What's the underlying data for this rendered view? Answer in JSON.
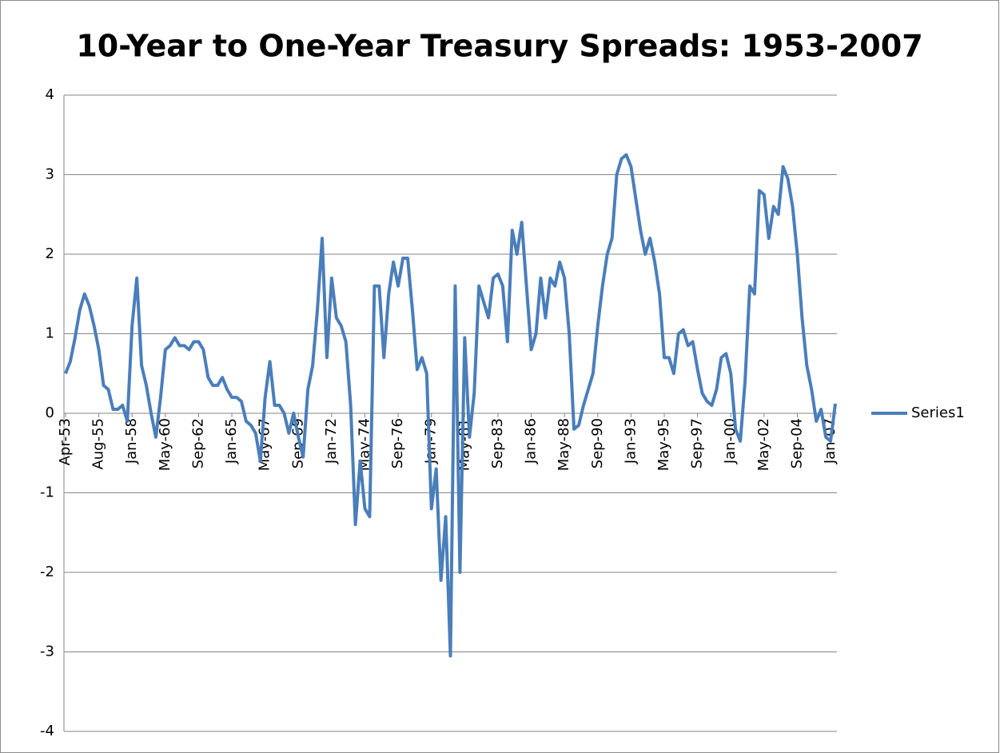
{
  "chart_data": {
    "type": "line",
    "title": "10-Year to One-Year Treasury Spreads: 1953-2007",
    "categories": [
      "Apr-53",
      null,
      null,
      null,
      null,
      null,
      null,
      "Aug-55",
      null,
      null,
      null,
      null,
      null,
      null,
      "Jan-58",
      null,
      null,
      null,
      null,
      null,
      null,
      "May-60",
      null,
      null,
      null,
      null,
      null,
      null,
      "Sep-62",
      null,
      null,
      null,
      null,
      null,
      null,
      "Jan-65",
      null,
      null,
      null,
      null,
      null,
      null,
      "May-67",
      null,
      null,
      null,
      null,
      null,
      null,
      "Sep-69",
      null,
      null,
      null,
      null,
      null,
      null,
      "Jan-72",
      null,
      null,
      null,
      null,
      null,
      null,
      "May-74",
      null,
      null,
      null,
      null,
      null,
      null,
      "Sep-76",
      null,
      null,
      null,
      null,
      null,
      null,
      "Jan-79",
      null,
      null,
      null,
      null,
      null,
      null,
      "May-81",
      null,
      null,
      null,
      null,
      null,
      null,
      "Sep-83",
      null,
      null,
      null,
      null,
      null,
      null,
      "Jan-86",
      null,
      null,
      null,
      null,
      null,
      null,
      "May-88",
      null,
      null,
      null,
      null,
      null,
      null,
      "Sep-90",
      null,
      null,
      null,
      null,
      null,
      null,
      "Jan-93",
      null,
      null,
      null,
      null,
      null,
      null,
      "May-95",
      null,
      null,
      null,
      null,
      null,
      null,
      "Sep-97",
      null,
      null,
      null,
      null,
      null,
      null,
      "Jan-00",
      null,
      null,
      null,
      null,
      null,
      null,
      "May-02",
      null,
      null,
      null,
      null,
      null,
      null,
      "Sep-04",
      null,
      null,
      null,
      null,
      null,
      null,
      "Jan-07",
      null
    ],
    "series": [
      {
        "name": "Series1",
        "color": "#4a7ebb",
        "values": [
          0.5,
          0.65,
          0.95,
          1.3,
          1.5,
          1.35,
          1.1,
          0.8,
          0.35,
          0.3,
          0.05,
          0.05,
          0.1,
          -0.1,
          1.1,
          1.7,
          0.6,
          0.35,
          0,
          -0.3,
          0.2,
          0.8,
          0.85,
          0.95,
          0.85,
          0.85,
          0.8,
          0.9,
          0.9,
          0.8,
          0.45,
          0.35,
          0.35,
          0.45,
          0.3,
          0.2,
          0.2,
          0.15,
          -0.1,
          -0.15,
          -0.25,
          -0.6,
          0.2,
          0.65,
          0.1,
          0.1,
          0,
          -0.25,
          0,
          -0.3,
          -0.55,
          0.3,
          0.6,
          1.3,
          2.2,
          0.7,
          1.7,
          1.2,
          1.1,
          0.9,
          0.1,
          -1.4,
          -0.6,
          -1.2,
          -1.3,
          1.6,
          1.6,
          0.7,
          1.5,
          1.9,
          1.6,
          1.95,
          1.95,
          1.3,
          0.55,
          0.7,
          0.5,
          -1.2,
          -0.7,
          -2.1,
          -1.3,
          -3.05,
          1.6,
          -2,
          0.95,
          -0.3,
          0.25,
          1.6,
          1.4,
          1.2,
          1.7,
          1.75,
          1.6,
          0.9,
          2.3,
          2,
          2.4,
          1.6,
          0.8,
          1,
          1.7,
          1.2,
          1.7,
          1.6,
          1.9,
          1.7,
          1,
          -0.2,
          -0.15,
          0.1,
          0.3,
          0.5,
          1.1,
          1.6,
          2,
          2.2,
          3,
          3.2,
          3.25,
          3.1,
          2.7,
          2.3,
          2,
          2.2,
          1.9,
          1.5,
          0.7,
          0.7,
          0.5,
          1,
          1.05,
          0.85,
          0.9,
          0.55,
          0.25,
          0.15,
          0.1,
          0.3,
          0.7,
          0.75,
          0.5,
          -0.2,
          -0.35,
          0.4,
          1.6,
          1.5,
          2.8,
          2.75,
          2.2,
          2.6,
          2.5,
          3.1,
          2.95,
          2.6,
          2,
          1.2,
          0.6,
          0.3,
          -0.1,
          0.05,
          -0.3,
          -0.35,
          0.12
        ]
      }
    ],
    "ylim": [
      -4,
      4
    ],
    "yticks": [
      -4,
      -3,
      -2,
      -1,
      0,
      1,
      2,
      3,
      4
    ],
    "grid": true,
    "legend": "right"
  }
}
